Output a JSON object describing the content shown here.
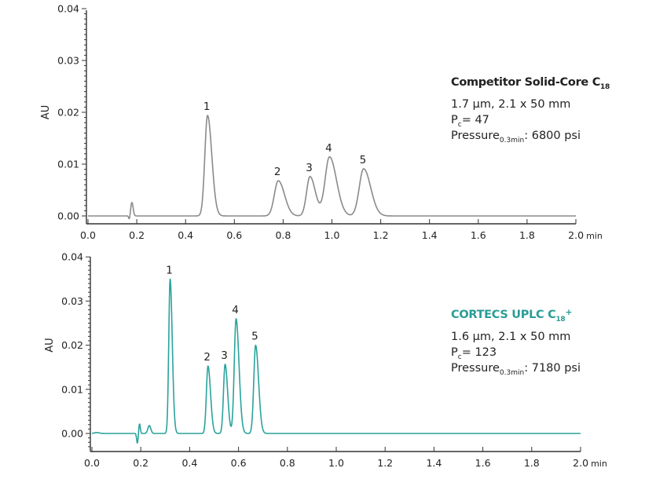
{
  "chart_data": [
    {
      "type": "line",
      "title": "Competitor Solid-Core C18",
      "xlabel": "min",
      "ylabel": "AU",
      "xlim": [
        0.0,
        2.0
      ],
      "ylim": [
        0.0,
        0.04
      ],
      "x_ticks": [
        "0.0",
        "0.2",
        "0.4",
        "0.6",
        "0.8",
        "1.0",
        "1.2",
        "1.4",
        "1.6",
        "1.8",
        "2.0"
      ],
      "y_ticks": [
        "0.00",
        "0.01",
        "0.02",
        "0.03",
        "0.04"
      ],
      "grid": false,
      "line_color": "#8a8a8a",
      "annotations": {
        "column": "Competitor Solid-Core C",
        "column_sub": "18",
        "dimensions": "1.7 µm, 2.1 x 50 mm",
        "pc_label": "P",
        "pc_sub": "c",
        "pc_value": "= 47",
        "pressure_label": "Pressure",
        "pressure_sub": "0.3min",
        "pressure_value": ": 6800 psi"
      },
      "peaks": [
        {
          "label": "1",
          "time": 0.49,
          "height": 0.0194,
          "width": 0.011
        },
        {
          "label": "2",
          "time": 0.78,
          "height": 0.0068,
          "width": 0.016
        },
        {
          "label": "3",
          "time": 0.91,
          "height": 0.0076,
          "width": 0.014
        },
        {
          "label": "4",
          "time": 0.99,
          "height": 0.0114,
          "width": 0.018
        },
        {
          "label": "5",
          "time": 1.13,
          "height": 0.0091,
          "width": 0.018
        }
      ],
      "artifacts": [
        {
          "time": 0.18,
          "height": 0.0026,
          "width": 0.005
        },
        {
          "time": 0.17,
          "height": -0.0008,
          "width": 0.003
        }
      ]
    },
    {
      "type": "line",
      "title": "CORTECS UPLC C18+",
      "xlabel": "min",
      "ylabel": "AU",
      "xlim": [
        0.0,
        2.0
      ],
      "ylim": [
        -0.004,
        0.04
      ],
      "x_ticks": [
        "0.0",
        "0.2",
        "0.4",
        "0.6",
        "0.8",
        "1.0",
        "1.2",
        "1.4",
        "1.6",
        "1.8",
        "2.0"
      ],
      "y_ticks": [
        "0.00",
        "0.01",
        "0.02",
        "0.03",
        "0.04"
      ],
      "grid": false,
      "line_color": "#2aa39c",
      "annotations": {
        "column": "CORTECS UPLC C",
        "column_sub": "18",
        "column_sup": "+",
        "dimensions": "1.6 µm, 2.1 x 50 mm",
        "pc_label": "P",
        "pc_sub": "c",
        "pc_value": "= 123",
        "pressure_label": "Pressure",
        "pressure_sub": "0.3min",
        "pressure_value": ": 7180 psi"
      },
      "peaks": [
        {
          "label": "1",
          "time": 0.32,
          "height": 0.035,
          "width": 0.0055
        },
        {
          "label": "2",
          "time": 0.475,
          "height": 0.0153,
          "width": 0.0065
        },
        {
          "label": "3",
          "time": 0.545,
          "height": 0.0157,
          "width": 0.0065
        },
        {
          "label": "4",
          "time": 0.59,
          "height": 0.026,
          "width": 0.0075
        },
        {
          "label": "5",
          "time": 0.67,
          "height": 0.02,
          "width": 0.0075
        }
      ],
      "artifacts": [
        {
          "time": 0.195,
          "height": 0.0022,
          "width": 0.003
        },
        {
          "time": 0.186,
          "height": -0.0022,
          "width": 0.003
        },
        {
          "time": 0.235,
          "height": 0.0018,
          "width": 0.006
        },
        {
          "time": 0.02,
          "height": 0.0002,
          "width": 0.01
        }
      ]
    }
  ],
  "panels": {
    "top": {
      "ylabel": "AU",
      "xunit": "min",
      "title": "Competitor Solid-Core C",
      "title_sub": "18",
      "dimensions": "1.7 µm, 2.1 x 50 mm",
      "pc_label": "P",
      "pc_sub": "c",
      "pc_value": "= 47",
      "pressure_label": "Pressure",
      "pressure_sub": "0.3min",
      "pressure_value": ": 6800 psi"
    },
    "bottom": {
      "ylabel": "AU",
      "xunit": "min",
      "title": "CORTECS UPLC C",
      "title_sub": "18",
      "title_sup": "+",
      "dimensions": "1.6 µm, 2.1 x 50 mm",
      "pc_label": "P",
      "pc_sub": "c",
      "pc_value": "= 123",
      "pressure_label": "Pressure",
      "pressure_sub": "0.3min",
      "pressure_value": ": 7180 psi"
    }
  }
}
